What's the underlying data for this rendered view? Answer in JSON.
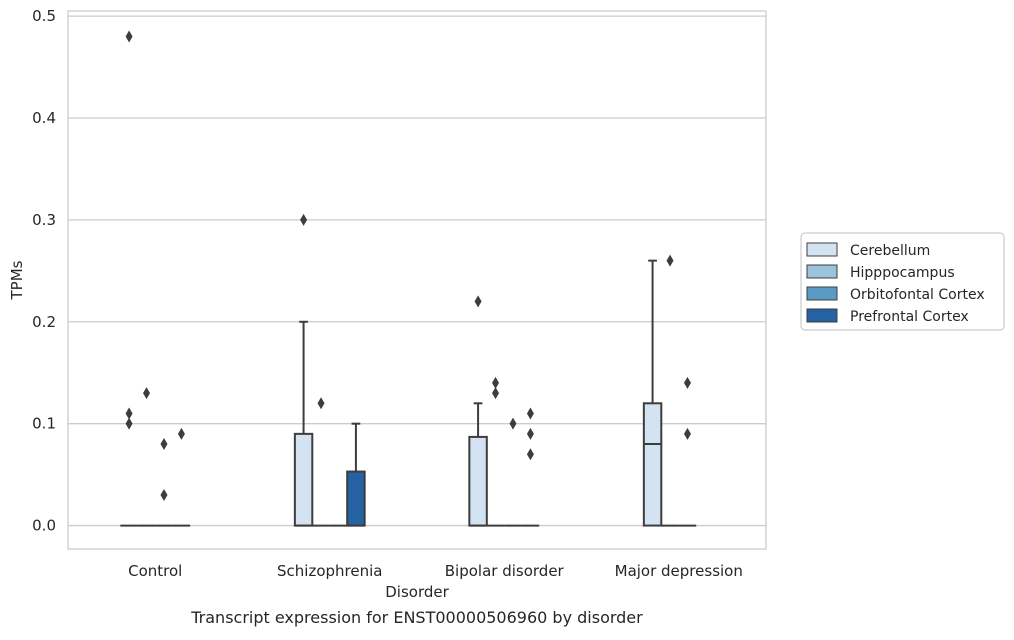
{
  "chart_data": {
    "type": "box",
    "title": "",
    "caption": "Transcript expression for ENST00000506960 by disorder",
    "xlabel": "Disorder",
    "ylabel": "TPMs",
    "ylim": [
      -0.023,
      0.505
    ],
    "yticks": [
      "0.0",
      "0.1",
      "0.2",
      "0.3",
      "0.4",
      "0.5"
    ],
    "ytick_values": [
      0.0,
      0.1,
      0.2,
      0.3,
      0.4,
      0.5
    ],
    "categories": [
      "Control",
      "Schizophrenia",
      "Bipolar disorder",
      "Major depression"
    ],
    "grid": true,
    "legend_position": "right",
    "series": [
      {
        "name": "Cerebellum",
        "color": "#d4e3f2",
        "boxes": [
          {
            "q1": 0,
            "median": 0,
            "q3": 0,
            "whislo": 0,
            "whishi": 0,
            "fliers": [
              0.48,
              0.11,
              0.1
            ]
          },
          {
            "q1": 0,
            "median": 0,
            "q3": 0.09,
            "whislo": 0,
            "whishi": 0.2,
            "fliers": [
              0.3
            ]
          },
          {
            "q1": 0,
            "median": 0,
            "q3": 0.087,
            "whislo": 0,
            "whishi": 0.12,
            "fliers": [
              0.22
            ]
          },
          {
            "q1": 0,
            "median": 0.08,
            "q3": 0.12,
            "whislo": 0,
            "whishi": 0.26,
            "fliers": []
          }
        ]
      },
      {
        "name": "Hipppocampus",
        "color": "#9cc3dc",
        "boxes": [
          {
            "q1": 0,
            "median": 0,
            "q3": 0,
            "whislo": 0,
            "whishi": 0,
            "fliers": [
              0.13
            ]
          },
          {
            "q1": 0,
            "median": 0,
            "q3": 0,
            "whislo": 0,
            "whishi": 0,
            "fliers": [
              0.12
            ]
          },
          {
            "q1": 0,
            "median": 0,
            "q3": 0,
            "whislo": 0,
            "whishi": 0,
            "fliers": [
              0.14,
              0.13
            ]
          },
          {
            "q1": 0,
            "median": 0,
            "q3": 0,
            "whislo": 0,
            "whishi": 0,
            "fliers": [
              0.26
            ]
          }
        ]
      },
      {
        "name": "Orbitofontal Cortex",
        "color": "#5a9bc6",
        "boxes": [
          {
            "q1": 0,
            "median": 0,
            "q3": 0,
            "whislo": 0,
            "whishi": 0,
            "fliers": [
              0.08,
              0.03
            ]
          },
          {
            "q1": 0,
            "median": 0,
            "q3": 0,
            "whislo": 0,
            "whishi": 0,
            "fliers": []
          },
          {
            "q1": 0,
            "median": 0,
            "q3": 0,
            "whislo": 0,
            "whishi": 0,
            "fliers": [
              0.1
            ]
          },
          {
            "q1": 0,
            "median": 0,
            "q3": 0,
            "whislo": 0,
            "whishi": 0,
            "fliers": [
              0.14,
              0.09
            ]
          }
        ]
      },
      {
        "name": "Prefrontal Cortex",
        "color": "#2462a4",
        "boxes": [
          {
            "q1": 0,
            "median": 0,
            "q3": 0,
            "whislo": 0,
            "whishi": 0,
            "fliers": [
              0.09
            ]
          },
          {
            "q1": 0,
            "median": 0,
            "q3": 0.053,
            "whislo": 0,
            "whishi": 0.1,
            "fliers": []
          },
          {
            "q1": 0,
            "median": 0,
            "q3": 0,
            "whislo": 0,
            "whishi": 0,
            "fliers": [
              0.11,
              0.09,
              0.07
            ]
          },
          null
        ]
      }
    ]
  }
}
